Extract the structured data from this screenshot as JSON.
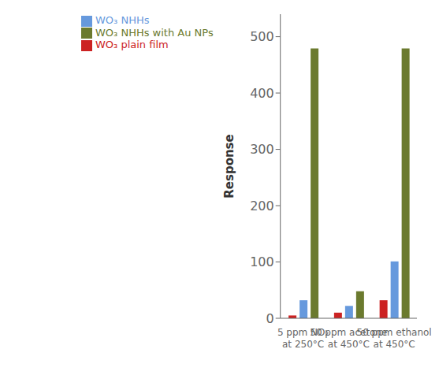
{
  "chart_data": {
    "type": "bar",
    "categories": [
      "5 ppm NO₂\nat 250°C",
      "50 ppm acetone\nat 450°C",
      "50 ppm ethanol\nat 450°C"
    ],
    "series": [
      {
        "name": "WO₃ plain film",
        "color": "#cc2222",
        "values": [
          5,
          10,
          32
        ]
      },
      {
        "name": "WO₃ NHHs",
        "color": "#6699dd",
        "values": [
          32,
          22,
          101
        ]
      },
      {
        "name": "WO₃ NHHs with Au NPs",
        "color": "#6b7a2e",
        "values": [
          479,
          48,
          479
        ]
      }
    ],
    "ylabel": "Response",
    "ylim": [
      0,
      540
    ],
    "yticks": [
      0,
      100,
      200,
      300,
      400,
      500
    ],
    "grid": false,
    "legend": "top"
  }
}
